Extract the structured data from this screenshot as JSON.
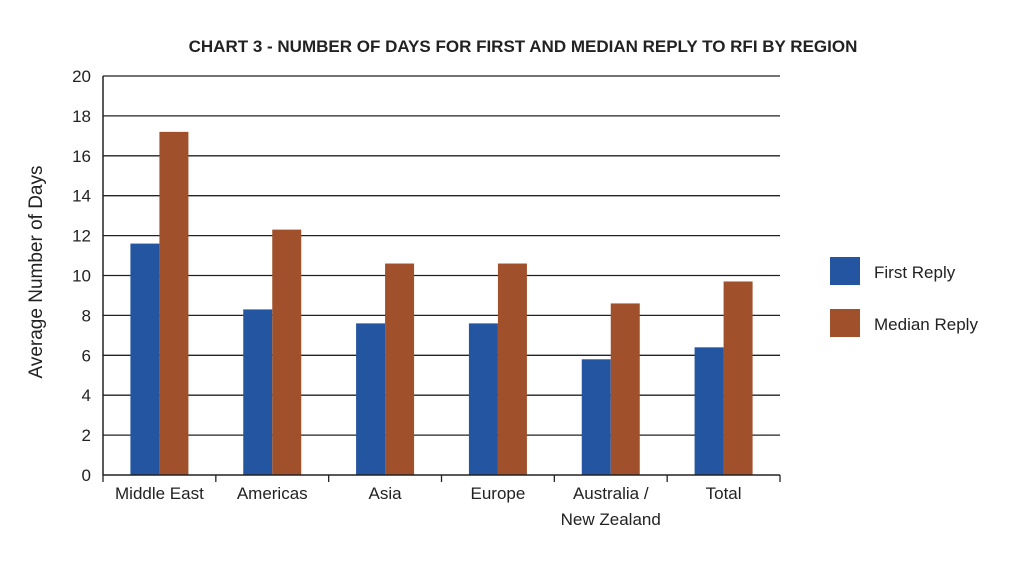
{
  "chart_data": {
    "type": "bar",
    "title": "CHART 3 - NUMBER OF DAYS FOR FIRST AND MEDIAN REPLY TO RFI BY REGION",
    "xlabel": "",
    "ylabel": "Average Number of Days",
    "ylim": [
      0,
      20
    ],
    "yticks": [
      "0",
      "2",
      "4",
      "6",
      "8",
      "10",
      "12",
      "14",
      "16",
      "18",
      "20"
    ],
    "grid": true,
    "legend_position": "right",
    "categories": [
      [
        "Middle East"
      ],
      [
        "Americas"
      ],
      [
        "Asia"
      ],
      [
        "Europe"
      ],
      [
        "Australia /",
        "New Zealand"
      ],
      [
        "Total"
      ]
    ],
    "series": [
      {
        "name": "First Reply",
        "color": "#2355a0",
        "values": [
          11.6,
          8.3,
          7.6,
          7.6,
          5.8,
          6.4
        ]
      },
      {
        "name": "Median Reply",
        "color": "#a0502a",
        "values": [
          17.2,
          12.3,
          10.6,
          10.6,
          8.6,
          9.7
        ]
      }
    ]
  }
}
